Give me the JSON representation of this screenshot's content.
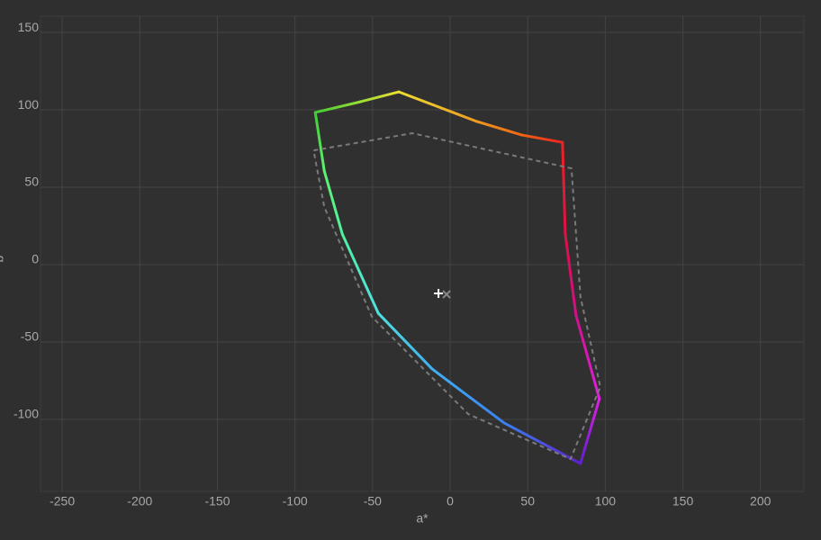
{
  "chart_data": {
    "type": "line",
    "xlabel": "a*",
    "ylabel": "b*",
    "xlim": [
      -264,
      228
    ],
    "ylim": [
      -146.5,
      160.5
    ],
    "xticks": [
      -250,
      -200,
      -150,
      -100,
      -50,
      0,
      50,
      100,
      150,
      200
    ],
    "yticks": [
      -100,
      -50,
      0,
      50,
      100,
      150
    ],
    "grid": true,
    "series": [
      {
        "x": [
          -86.9,
          -57.9,
          -33,
          17.4,
          46.3,
          72.4,
          74.2,
          81.1,
          96.2,
          84,
          34.8,
          -11.6,
          -46.3,
          -69.5,
          -81.1,
          -86.9
        ],
        "y": [
          98.3,
          105.2,
          111.6,
          92.4,
          83.7,
          79,
          19.8,
          -32.6,
          -86.6,
          -128.5,
          -102.3,
          -67.4,
          -31.4,
          19.8,
          60.5,
          98.3
        ],
        "colors": [
          "#44cc33",
          "#99dd33",
          "#eedd33",
          "#ee9922",
          "#ee6611",
          "#ee2222",
          "#dd1144",
          "#d0108a",
          "#e020e0",
          "#6020d0",
          "#3a80f0",
          "#40b0f0",
          "#50e0e0",
          "#50f0a0",
          "#60f070",
          "#44cc33"
        ]
      },
      {
        "x": [
          -88,
          -24.3,
          78.2,
          84,
          96.8,
          77.6,
          11.6,
          -50.4,
          -81.1,
          -88
        ],
        "y": [
          73.8,
          84.9,
          62.2,
          -20.9,
          -79,
          -125.6,
          -96.5,
          -33.7,
          37.2,
          73.8
        ],
        "color": "#7a7a7a",
        "dash": true
      }
    ],
    "markers": [
      {
        "x": -7.5,
        "y": -18.6,
        "symbol": "plus",
        "color": "#ffffff"
      },
      {
        "x": -2.3,
        "y": -19.2,
        "symbol": "cross",
        "color": "#888888"
      }
    ]
  }
}
